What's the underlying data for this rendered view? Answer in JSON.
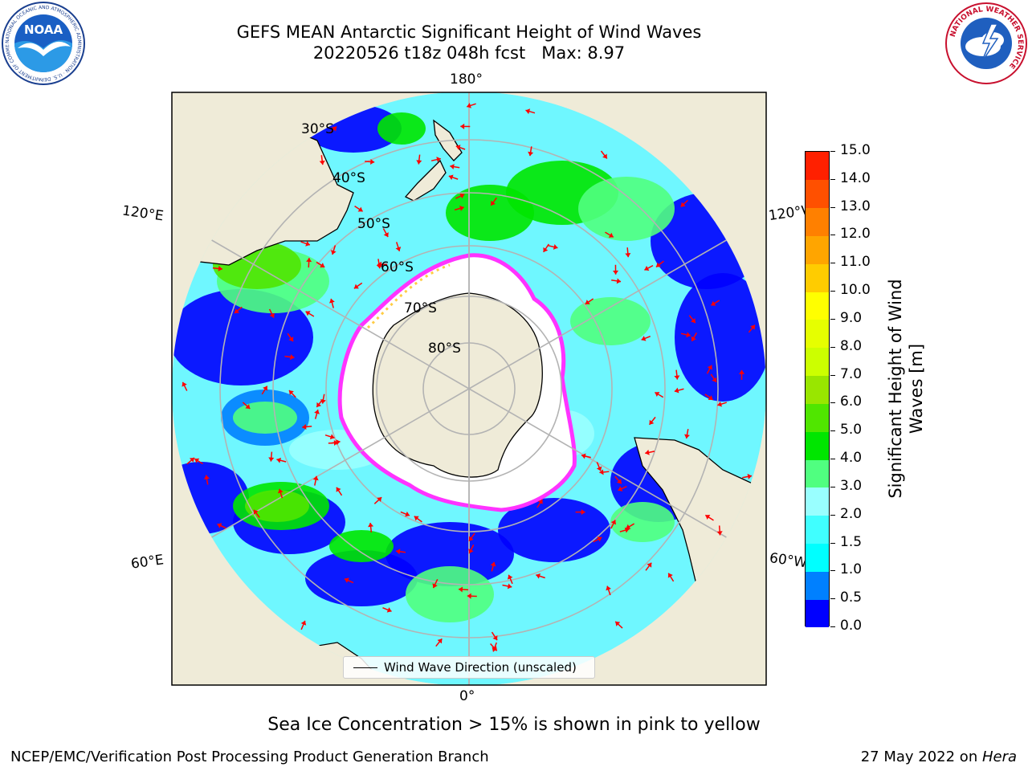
{
  "header": {
    "title_line1": "GEFS MEAN Antarctic Significant Height of Wind Waves",
    "title_line2": "20220526 t18z 048h fcst   Max: 8.97"
  },
  "logos": {
    "left": "NOAA",
    "left_ring_text": "NATIONAL OCEANIC AND ATMOSPHERIC ADMINISTRATION · U.S. DEPARTMENT OF COMMERCE",
    "right_ring_text": "NATIONAL WEATHER SERVICE"
  },
  "map": {
    "projection": "south-polar-stereographic",
    "colors": {
      "land": "#efebd8",
      "ice": "#ffffff",
      "ice_edge": "#ff33ff",
      "arrow": "#ff0000",
      "grid": "#b3b3b3"
    },
    "lon_labels": {
      "top": "180°",
      "bottom": "0°",
      "upper_left": "120°E",
      "lower_left": "60°E",
      "upper_right": "120°W",
      "lower_right": "60°W"
    },
    "lat_labels": [
      "30°S",
      "40°S",
      "50°S",
      "60°S",
      "70°S",
      "80°S"
    ],
    "legend": "Wind Wave Direction (unscaled)"
  },
  "colorbar": {
    "label": "Significant Height of Wind Waves [m]",
    "label_line1": "Significant Height of Wind",
    "label_line2": "Waves [m]",
    "ticks": [
      "0.0",
      "0.5",
      "1.0",
      "1.5",
      "2.0",
      "3.0",
      "4.0",
      "5.0",
      "6.0",
      "7.0",
      "8.0",
      "9.0",
      "10.0",
      "11.0",
      "12.0",
      "13.0",
      "14.0",
      "15.0"
    ],
    "colors": [
      "#0000ff",
      "#0080ff",
      "#00ffff",
      "#40ffff",
      "#99ffff",
      "#50ff80",
      "#00e600",
      "#50e600",
      "#99e600",
      "#ccff00",
      "#e6ff00",
      "#ffff00",
      "#ffcc00",
      "#ffa500",
      "#ff8000",
      "#ff5000",
      "#ff2000"
    ]
  },
  "note": "Sea Ice Concentration > 15% is shown in pink to yellow",
  "footer": {
    "left": "NCEP/EMC/Verification Post Processing Product Generation Branch",
    "right_date": "27 May 2022 on ",
    "right_machine": "Hera"
  }
}
